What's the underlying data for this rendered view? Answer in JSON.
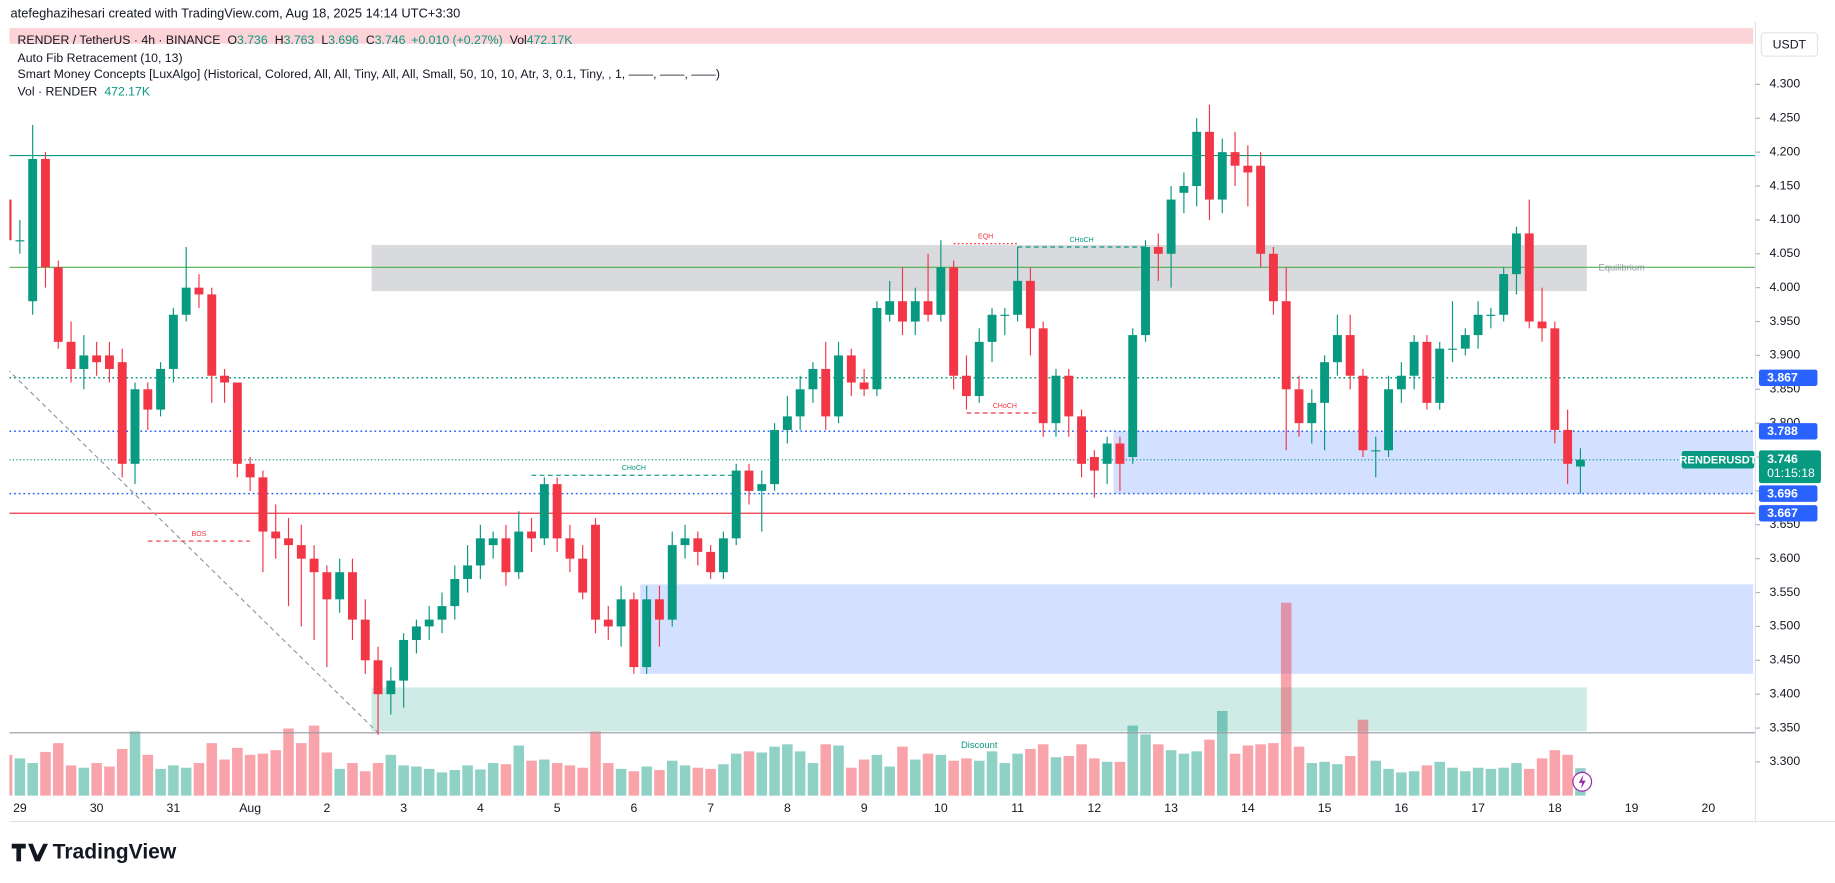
{
  "header": {
    "title": "atefeghazihesari created with TradingView.com, Aug 18, 2025 14:14 UTC+3:30"
  },
  "legend": {
    "symbol": "RENDER / TetherUS · 4h · BINANCE",
    "fields": [
      {
        "label": "O",
        "value": 3.736
      },
      {
        "label": "H",
        "value": 3.763
      },
      {
        "label": "L",
        "value": 3.696
      },
      {
        "label": "C",
        "value": 3.746
      }
    ],
    "change": "+0.010 (+0.27%)",
    "vol_label": "Vol",
    "vol": "472.17K",
    "indicators": [
      "Auto Fib Retracement (10, 13)",
      "Smart Money Concepts [LuxAlgo] (Historical, Colored, All, All, Tiny, All, All, Small, 50, 10, 10, Atr, 3, 0.1, Tiny, , 1, ——, ——, ——)"
    ],
    "volume_line": "Vol · RENDER",
    "volume_value": "472.17K"
  },
  "footer": {
    "brand": "TradingView"
  },
  "chart_data": {
    "type": "candlestick",
    "currency": "USDT",
    "up_color": "#089981",
    "down_color": "#f23645",
    "categories": [
      null,
      "29",
      null,
      null,
      null,
      null,
      null,
      "30",
      null,
      null,
      null,
      null,
      null,
      "31",
      null,
      null,
      null,
      null,
      null,
      "Aug",
      null,
      null,
      null,
      null,
      null,
      "2",
      null,
      null,
      null,
      null,
      null,
      "3",
      null,
      null,
      null,
      null,
      null,
      "4",
      null,
      null,
      null,
      null,
      null,
      "5",
      null,
      null,
      null,
      null,
      null,
      "6",
      null,
      null,
      null,
      null,
      null,
      "7",
      null,
      null,
      null,
      null,
      null,
      "8",
      null,
      null,
      null,
      null,
      null,
      "9",
      null,
      null,
      null,
      null,
      null,
      "10",
      null,
      null,
      null,
      null,
      null,
      "11",
      null,
      null,
      null,
      null,
      null,
      "12",
      null,
      null,
      null,
      null,
      null,
      "13",
      null,
      null,
      null,
      null,
      null,
      "14",
      null,
      null,
      null,
      null,
      null,
      "15",
      null,
      null,
      null,
      null,
      null,
      "16",
      null,
      null,
      null,
      null,
      null,
      "17",
      null,
      null,
      null,
      null,
      null,
      "18",
      null,
      null,
      null,
      null,
      null,
      "19",
      null,
      null,
      null,
      null,
      null,
      "20",
      null,
      null,
      null
    ],
    "open": [
      4.13,
      4.07,
      3.98,
      4.19,
      4.03,
      3.92,
      3.88,
      3.9,
      3.9,
      3.89,
      3.74,
      3.85,
      3.82,
      3.88,
      3.96,
      4.0,
      3.99,
      3.87,
      3.86,
      3.74,
      3.72,
      3.64,
      3.63,
      3.62,
      3.6,
      3.58,
      3.54,
      3.58,
      3.51,
      3.45,
      3.4,
      3.42,
      3.48,
      3.5,
      3.51,
      3.53,
      3.57,
      3.59,
      3.62,
      3.63,
      3.58,
      3.64,
      3.63,
      3.71,
      3.63,
      3.6,
      3.65,
      3.51,
      3.5,
      3.54,
      3.44,
      3.54,
      3.51,
      3.62,
      3.63,
      3.61,
      3.58,
      3.63,
      3.73,
      3.7,
      3.71,
      3.79,
      3.81,
      3.85,
      3.88,
      3.81,
      3.9,
      3.86,
      3.85,
      3.96,
      3.98,
      3.95,
      3.98,
      3.96,
      4.03,
      3.87,
      3.84,
      3.92,
      3.96,
      3.96,
      4.01,
      3.94,
      3.8,
      3.87,
      3.81,
      3.75,
      3.74,
      3.77,
      3.75,
      3.93,
      4.06,
      4.05,
      4.14,
      4.15,
      4.23,
      4.13,
      4.2,
      4.18,
      4.18,
      4.05,
      3.98,
      3.85,
      3.8,
      3.83,
      3.89,
      3.93,
      3.87,
      3.76,
      3.76,
      3.85,
      3.87,
      3.92,
      3.83,
      3.91,
      3.91,
      3.93,
      3.96,
      3.96,
      4.02,
      4.08,
      3.95,
      3.94,
      3.79,
      3.736,
      null,
      null,
      null,
      null,
      null,
      null,
      null,
      null,
      null,
      null,
      null,
      null,
      null
    ],
    "high": [
      4.14,
      4.1,
      4.24,
      4.2,
      4.04,
      3.95,
      3.93,
      3.92,
      3.92,
      3.91,
      3.86,
      3.86,
      3.89,
      3.97,
      4.06,
      4.02,
      4.0,
      3.88,
      3.86,
      3.75,
      3.73,
      3.68,
      3.66,
      3.65,
      3.62,
      3.59,
      3.6,
      3.6,
      3.54,
      3.47,
      3.44,
      3.49,
      3.51,
      3.53,
      3.55,
      3.59,
      3.62,
      3.65,
      3.64,
      3.65,
      3.67,
      3.66,
      3.72,
      3.72,
      3.65,
      3.62,
      3.66,
      3.53,
      3.56,
      3.55,
      3.56,
      3.56,
      3.64,
      3.65,
      3.64,
      3.62,
      3.64,
      3.74,
      3.74,
      3.73,
      3.8,
      3.84,
      3.87,
      3.89,
      3.92,
      3.92,
      3.91,
      3.88,
      3.98,
      4.01,
      4.03,
      4.0,
      4.05,
      4.07,
      4.04,
      3.9,
      3.94,
      3.97,
      3.97,
      4.06,
      4.03,
      3.95,
      3.88,
      3.88,
      3.82,
      3.76,
      3.78,
      3.78,
      3.94,
      4.07,
      4.08,
      4.15,
      4.17,
      4.25,
      4.27,
      4.22,
      4.23,
      4.21,
      4.2,
      4.06,
      4.03,
      3.87,
      3.85,
      3.9,
      3.96,
      3.96,
      3.88,
      3.78,
      3.87,
      3.89,
      3.93,
      3.93,
      3.92,
      3.98,
      3.94,
      3.98,
      3.97,
      4.03,
      4.09,
      4.13,
      4.0,
      3.95,
      3.82,
      3.763,
      null,
      null,
      null,
      null,
      null,
      null,
      null,
      null,
      null,
      null,
      null,
      null,
      null
    ],
    "low": [
      3.97,
      4.05,
      3.96,
      4.0,
      3.91,
      3.86,
      3.85,
      3.87,
      3.86,
      3.72,
      3.71,
      3.79,
      3.81,
      3.86,
      3.95,
      3.97,
      3.83,
      3.83,
      3.72,
      3.7,
      3.58,
      3.6,
      3.53,
      3.5,
      3.48,
      3.44,
      3.52,
      3.48,
      3.43,
      3.34,
      3.37,
      3.38,
      3.46,
      3.48,
      3.49,
      3.51,
      3.55,
      3.57,
      3.6,
      3.56,
      3.57,
      3.61,
      3.62,
      3.61,
      3.58,
      3.54,
      3.49,
      3.48,
      3.47,
      3.43,
      3.43,
      3.47,
      3.5,
      3.6,
      3.59,
      3.57,
      3.57,
      3.62,
      3.68,
      3.64,
      3.7,
      3.77,
      3.79,
      3.83,
      3.79,
      3.8,
      3.84,
      3.84,
      3.84,
      3.95,
      3.93,
      3.93,
      3.95,
      3.95,
      3.85,
      3.82,
      3.83,
      3.89,
      3.93,
      3.95,
      3.9,
      3.78,
      3.78,
      3.78,
      3.72,
      3.69,
      3.71,
      3.7,
      3.74,
      3.92,
      4.01,
      4.0,
      4.11,
      4.12,
      4.1,
      4.11,
      4.15,
      4.12,
      4.03,
      3.96,
      3.76,
      3.78,
      3.77,
      3.76,
      3.87,
      3.85,
      3.75,
      3.72,
      3.75,
      3.83,
      3.85,
      3.82,
      3.82,
      3.89,
      3.9,
      3.91,
      3.94,
      3.95,
      3.99,
      3.94,
      3.92,
      3.77,
      3.71,
      3.696,
      null,
      null,
      null,
      null,
      null,
      null,
      null,
      null,
      null,
      null,
      null,
      null,
      null
    ],
    "close": [
      4.07,
      4.07,
      4.19,
      4.03,
      3.92,
      3.88,
      3.9,
      3.89,
      3.88,
      3.74,
      3.85,
      3.82,
      3.88,
      3.96,
      4.0,
      3.99,
      3.87,
      3.86,
      3.74,
      3.72,
      3.64,
      3.63,
      3.62,
      3.6,
      3.58,
      3.54,
      3.58,
      3.51,
      3.45,
      3.4,
      3.42,
      3.48,
      3.5,
      3.51,
      3.53,
      3.57,
      3.59,
      3.63,
      3.63,
      3.58,
      3.64,
      3.63,
      3.71,
      3.63,
      3.6,
      3.55,
      3.51,
      3.5,
      3.54,
      3.44,
      3.54,
      3.51,
      3.62,
      3.63,
      3.61,
      3.58,
      3.63,
      3.73,
      3.7,
      3.71,
      3.79,
      3.81,
      3.85,
      3.88,
      3.81,
      3.9,
      3.86,
      3.85,
      3.97,
      3.98,
      3.95,
      3.98,
      3.96,
      4.03,
      3.87,
      3.84,
      3.92,
      3.96,
      3.96,
      4.01,
      3.94,
      3.8,
      3.87,
      3.81,
      3.74,
      3.73,
      3.77,
      3.74,
      3.93,
      4.06,
      4.05,
      4.13,
      4.15,
      4.23,
      4.13,
      4.2,
      4.18,
      4.17,
      4.05,
      3.98,
      3.85,
      3.8,
      3.83,
      3.89,
      3.93,
      3.87,
      3.76,
      3.76,
      3.85,
      3.87,
      3.92,
      3.83,
      3.91,
      3.91,
      3.93,
      3.96,
      3.96,
      4.02,
      4.08,
      3.95,
      3.94,
      3.79,
      3.74,
      3.746,
      null,
      null,
      null,
      null,
      null,
      null,
      null,
      null,
      null,
      null,
      null,
      null,
      null
    ],
    "volume": [
      700,
      640,
      560,
      750,
      900,
      520,
      480,
      560,
      500,
      800,
      1100,
      700,
      460,
      520,
      480,
      560,
      900,
      620,
      820,
      700,
      720,
      780,
      1150,
      900,
      1200,
      740,
      460,
      560,
      420,
      560,
      700,
      520,
      500,
      460,
      400,
      440,
      520,
      450,
      560,
      540,
      860,
      600,
      620,
      560,
      520,
      480,
      1100,
      560,
      460,
      420,
      500,
      440,
      600,
      520,
      480,
      460,
      540,
      720,
      760,
      740,
      840,
      880,
      760,
      560,
      880,
      860,
      480,
      620,
      700,
      500,
      840,
      620,
      720,
      700,
      600,
      640,
      600,
      760,
      560,
      720,
      800,
      880,
      660,
      680,
      880,
      640,
      580,
      580,
      1200,
      1050,
      880,
      780,
      720,
      760,
      960,
      1450,
      720,
      860,
      880,
      900,
      3300,
      840,
      560,
      580,
      540,
      680,
      1300,
      600,
      460,
      400,
      420,
      520,
      580,
      480,
      420,
      480,
      460,
      480,
      560,
      460,
      640,
      780,
      700,
      472.17,
      null,
      null,
      null,
      null,
      null,
      null,
      null,
      null,
      null,
      null,
      null,
      null,
      null
    ],
    "ylim": [
      3.25,
      4.39
    ],
    "yticks": [
      {
        "value": 3.3,
        "label": "3.300"
      },
      {
        "value": 3.35,
        "label": "3.350"
      },
      {
        "value": 3.4,
        "label": "3.400"
      },
      {
        "value": 3.45,
        "label": "3.450"
      },
      {
        "value": 3.5,
        "label": "3.500"
      },
      {
        "value": 3.55,
        "label": "3.550"
      },
      {
        "value": 3.6,
        "label": "3.600"
      },
      {
        "value": 3.65,
        "label": "3.650"
      },
      {
        "value": 3.7,
        "label": "3.700"
      },
      {
        "value": 3.75,
        "label": "3.750"
      },
      {
        "value": 3.8,
        "label": "3.800"
      },
      {
        "value": 3.85,
        "label": "3.850"
      },
      {
        "value": 3.9,
        "label": "3.900"
      },
      {
        "value": 3.95,
        "label": "3.950"
      },
      {
        "value": 4.0,
        "label": "4.000"
      },
      {
        "value": 4.05,
        "label": "4.050"
      },
      {
        "value": 4.1,
        "label": "4.100"
      },
      {
        "value": 4.15,
        "label": "4.150"
      },
      {
        "value": 4.2,
        "label": "4.200"
      },
      {
        "value": 4.25,
        "label": "4.250"
      },
      {
        "value": 4.3,
        "label": "4.300"
      }
    ],
    "zones": [
      {
        "from": 0,
        "to": 136,
        "low": 4.36,
        "high": 4.383,
        "color": "rgba(242,54,69,0.22)"
      },
      {
        "from": 29,
        "to": 123,
        "low": 3.995,
        "high": 4.063,
        "color": "rgba(120,123,134,0.28)",
        "label": "Equilibrium"
      },
      {
        "from": 87,
        "to": 136,
        "low": 3.696,
        "high": 3.788,
        "color": "rgba(41,98,255,0.2)"
      },
      {
        "from": 50,
        "to": 136,
        "low": 3.43,
        "high": 3.562,
        "color": "rgba(41,98,255,0.2)"
      },
      {
        "from": 29,
        "to": 123,
        "low": 3.345,
        "high": 3.41,
        "color": "rgba(8,153,129,0.2)",
        "label": "Discount"
      }
    ],
    "levels": [
      {
        "value": 4.195,
        "color": "#089981",
        "style": "solid"
      },
      {
        "value": 4.03,
        "color": "#4caf50",
        "style": "solid"
      },
      {
        "value": 3.867,
        "color": "#089981",
        "style": "dotted",
        "tag": true
      },
      {
        "value": 3.788,
        "color": "#2962ff",
        "style": "dotted",
        "tag": true
      },
      {
        "value": 3.696,
        "color": "#2962ff",
        "style": "dotted",
        "tag": true
      },
      {
        "value": 3.667,
        "color": "#f23645",
        "style": "solid",
        "tag": true
      },
      {
        "value": 3.343,
        "color": "#9598a1",
        "style": "solid"
      }
    ],
    "structures": [
      {
        "label": "EQH",
        "from": 74,
        "to": 79,
        "value": 4.065,
        "color": "#f23645"
      },
      {
        "label": "CHoCH",
        "from": 79,
        "to": 89,
        "value": 4.06,
        "color": "#089981"
      },
      {
        "label": "BOS",
        "from": 11,
        "to": 19,
        "value": 3.626,
        "color": "#f23645"
      },
      {
        "label": "CHoCH",
        "from": 41,
        "to": 57,
        "value": 3.723,
        "color": "#089981"
      },
      {
        "label": "CHoCH",
        "from": 75,
        "to": 81,
        "value": 3.815,
        "color": "#f23645"
      }
    ],
    "trendlines": [
      {
        "from": 0,
        "from_value": 3.88,
        "to": 29,
        "to_value": 3.343,
        "color": "#9598a1"
      }
    ],
    "last": {
      "name": "RENDERUSDT",
      "value": 3.746,
      "countdown": "01:15:18",
      "color": "#089981"
    }
  }
}
